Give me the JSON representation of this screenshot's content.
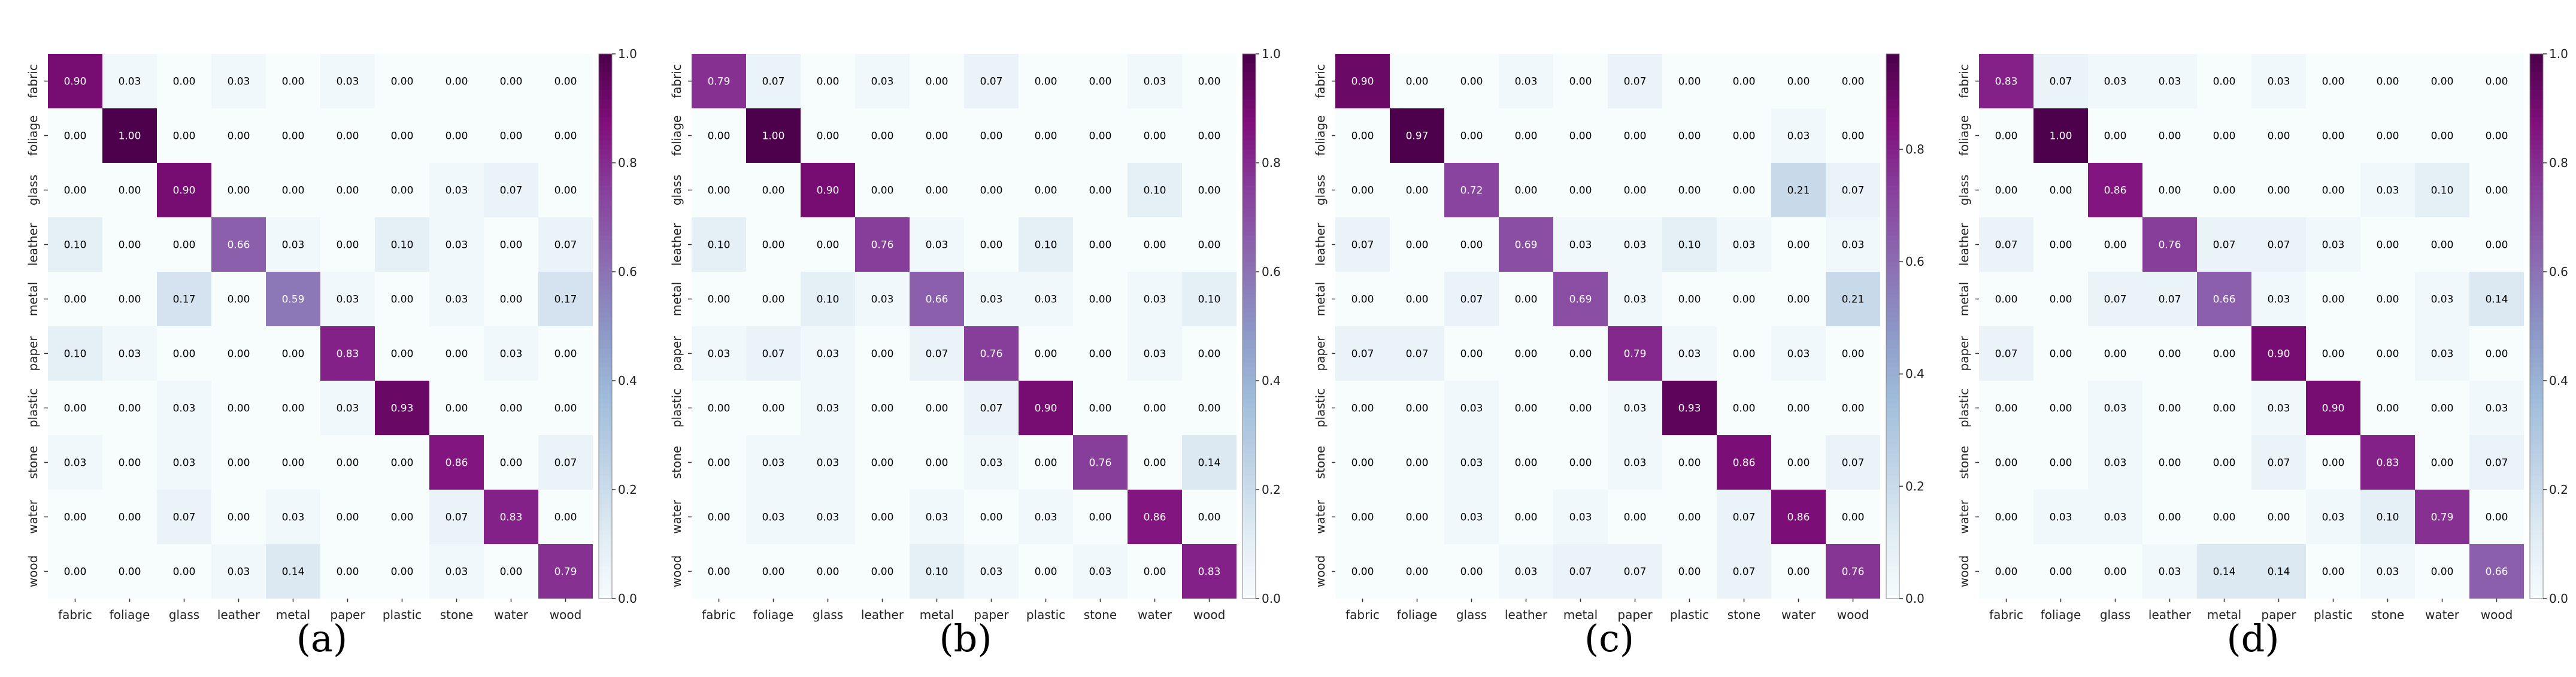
{
  "labels": [
    "fabric",
    "foliage",
    "glass",
    "leather",
    "metal",
    "paper",
    "plastic",
    "stone",
    "water",
    "wood"
  ],
  "colors": {
    "low": "#f7fcfd",
    "high": "#4d004b",
    "text_dark": "#000000",
    "text_light": "#ffffff"
  },
  "chart_data": [
    {
      "type": "heatmap",
      "caption": "(a)",
      "vmin": 0,
      "vmax": 1.0,
      "colorbar_ticks": [
        "0.0",
        "0.2",
        "0.4",
        "0.6",
        "0.8",
        "1.0"
      ],
      "colorbar_values": [
        0,
        0.2,
        0.4,
        0.6,
        0.8,
        1.0
      ],
      "x_categories": [
        "fabric",
        "foliage",
        "glass",
        "leather",
        "metal",
        "paper",
        "plastic",
        "stone",
        "water",
        "wood"
      ],
      "y_categories": [
        "fabric",
        "foliage",
        "glass",
        "leather",
        "metal",
        "paper",
        "plastic",
        "stone",
        "water",
        "wood"
      ],
      "matrix": [
        [
          0.9,
          0.03,
          0.0,
          0.03,
          0.0,
          0.03,
          0.0,
          0.0,
          0.0,
          0.0
        ],
        [
          0.0,
          1.0,
          0.0,
          0.0,
          0.0,
          0.0,
          0.0,
          0.0,
          0.0,
          0.0
        ],
        [
          0.0,
          0.0,
          0.9,
          0.0,
          0.0,
          0.0,
          0.0,
          0.03,
          0.07,
          0.0
        ],
        [
          0.1,
          0.0,
          0.0,
          0.66,
          0.03,
          0.0,
          0.1,
          0.03,
          0.0,
          0.07
        ],
        [
          0.0,
          0.0,
          0.17,
          0.0,
          0.59,
          0.03,
          0.0,
          0.03,
          0.0,
          0.17
        ],
        [
          0.1,
          0.03,
          0.0,
          0.0,
          0.0,
          0.83,
          0.0,
          0.0,
          0.03,
          0.0
        ],
        [
          0.0,
          0.0,
          0.03,
          0.0,
          0.0,
          0.03,
          0.93,
          0.0,
          0.0,
          0.0
        ],
        [
          0.03,
          0.0,
          0.03,
          0.0,
          0.0,
          0.0,
          0.0,
          0.86,
          0.0,
          0.07
        ],
        [
          0.0,
          0.0,
          0.07,
          0.0,
          0.03,
          0.0,
          0.0,
          0.07,
          0.83,
          0.0
        ],
        [
          0.0,
          0.0,
          0.0,
          0.03,
          0.14,
          0.0,
          0.0,
          0.03,
          0.0,
          0.79
        ]
      ]
    },
    {
      "type": "heatmap",
      "caption": "(b)",
      "vmin": 0,
      "vmax": 1.0,
      "colorbar_ticks": [
        "0.0",
        "0.2",
        "0.4",
        "0.6",
        "0.8",
        "1.0"
      ],
      "colorbar_values": [
        0,
        0.2,
        0.4,
        0.6,
        0.8,
        1.0
      ],
      "x_categories": [
        "fabric",
        "foliage",
        "glass",
        "leather",
        "metal",
        "paper",
        "plastic",
        "stone",
        "water",
        "wood"
      ],
      "y_categories": [
        "fabric",
        "foliage",
        "glass",
        "leather",
        "metal",
        "paper",
        "plastic",
        "stone",
        "water",
        "wood"
      ],
      "matrix": [
        [
          0.79,
          0.07,
          0.0,
          0.03,
          0.0,
          0.07,
          0.0,
          0.0,
          0.03,
          0.0
        ],
        [
          0.0,
          1.0,
          0.0,
          0.0,
          0.0,
          0.0,
          0.0,
          0.0,
          0.0,
          0.0
        ],
        [
          0.0,
          0.0,
          0.9,
          0.0,
          0.0,
          0.0,
          0.0,
          0.0,
          0.1,
          0.0
        ],
        [
          0.1,
          0.0,
          0.0,
          0.76,
          0.03,
          0.0,
          0.1,
          0.0,
          0.0,
          0.0
        ],
        [
          0.0,
          0.0,
          0.1,
          0.03,
          0.66,
          0.03,
          0.03,
          0.0,
          0.03,
          0.1
        ],
        [
          0.03,
          0.07,
          0.03,
          0.0,
          0.07,
          0.76,
          0.0,
          0.0,
          0.03,
          0.0
        ],
        [
          0.0,
          0.0,
          0.03,
          0.0,
          0.0,
          0.07,
          0.9,
          0.0,
          0.0,
          0.0
        ],
        [
          0.0,
          0.03,
          0.03,
          0.0,
          0.0,
          0.03,
          0.0,
          0.76,
          0.0,
          0.14
        ],
        [
          0.0,
          0.03,
          0.03,
          0.0,
          0.03,
          0.0,
          0.03,
          0.0,
          0.86,
          0.0
        ],
        [
          0.0,
          0.0,
          0.0,
          0.0,
          0.1,
          0.03,
          0.0,
          0.03,
          0.0,
          0.83
        ]
      ]
    },
    {
      "type": "heatmap",
      "caption": "(c)",
      "vmin": 0,
      "vmax": 0.97,
      "colorbar_ticks": [
        "0.0",
        "0.2",
        "0.4",
        "0.6",
        "0.8"
      ],
      "colorbar_values": [
        0,
        0.2,
        0.4,
        0.6,
        0.8
      ],
      "x_categories": [
        "fabric",
        "foliage",
        "glass",
        "leather",
        "metal",
        "paper",
        "plastic",
        "stone",
        "water",
        "wood"
      ],
      "y_categories": [
        "fabric",
        "foliage",
        "glass",
        "leather",
        "metal",
        "paper",
        "plastic",
        "stone",
        "water",
        "wood"
      ],
      "matrix": [
        [
          0.9,
          0.0,
          0.0,
          0.03,
          0.0,
          0.07,
          0.0,
          0.0,
          0.0,
          0.0
        ],
        [
          0.0,
          0.97,
          0.0,
          0.0,
          0.0,
          0.0,
          0.0,
          0.0,
          0.03,
          0.0
        ],
        [
          0.0,
          0.0,
          0.72,
          0.0,
          0.0,
          0.0,
          0.0,
          0.0,
          0.21,
          0.07
        ],
        [
          0.07,
          0.0,
          0.0,
          0.69,
          0.03,
          0.03,
          0.1,
          0.03,
          0.0,
          0.03
        ],
        [
          0.0,
          0.0,
          0.07,
          0.0,
          0.69,
          0.03,
          0.0,
          0.0,
          0.0,
          0.21
        ],
        [
          0.07,
          0.07,
          0.0,
          0.0,
          0.0,
          0.79,
          0.03,
          0.0,
          0.03,
          0.0
        ],
        [
          0.0,
          0.0,
          0.03,
          0.0,
          0.0,
          0.03,
          0.93,
          0.0,
          0.0,
          0.0
        ],
        [
          0.0,
          0.0,
          0.03,
          0.0,
          0.0,
          0.03,
          0.0,
          0.86,
          0.0,
          0.07
        ],
        [
          0.0,
          0.0,
          0.03,
          0.0,
          0.03,
          0.0,
          0.0,
          0.07,
          0.86,
          0.0
        ],
        [
          0.0,
          0.0,
          0.0,
          0.03,
          0.07,
          0.07,
          0.0,
          0.07,
          0.0,
          0.76
        ]
      ]
    },
    {
      "type": "heatmap",
      "caption": "(d)",
      "vmin": 0,
      "vmax": 1.0,
      "colorbar_ticks": [
        "0.0",
        "0.2",
        "0.4",
        "0.6",
        "0.8",
        "1.0"
      ],
      "colorbar_values": [
        0,
        0.2,
        0.4,
        0.6,
        0.8,
        1.0
      ],
      "x_categories": [
        "fabric",
        "foliage",
        "glass",
        "leather",
        "metal",
        "paper",
        "plastic",
        "stone",
        "water",
        "wood"
      ],
      "y_categories": [
        "fabric",
        "foliage",
        "glass",
        "leather",
        "metal",
        "paper",
        "plastic",
        "stone",
        "water",
        "wood"
      ],
      "matrix": [
        [
          0.83,
          0.07,
          0.03,
          0.03,
          0.0,
          0.03,
          0.0,
          0.0,
          0.0,
          0.0
        ],
        [
          0.0,
          1.0,
          0.0,
          0.0,
          0.0,
          0.0,
          0.0,
          0.0,
          0.0,
          0.0
        ],
        [
          0.0,
          0.0,
          0.86,
          0.0,
          0.0,
          0.0,
          0.0,
          0.03,
          0.1,
          0.0
        ],
        [
          0.07,
          0.0,
          0.0,
          0.76,
          0.07,
          0.07,
          0.03,
          0.0,
          0.0,
          0.0
        ],
        [
          0.0,
          0.0,
          0.07,
          0.07,
          0.66,
          0.03,
          0.0,
          0.0,
          0.03,
          0.14
        ],
        [
          0.07,
          0.0,
          0.0,
          0.0,
          0.0,
          0.9,
          0.0,
          0.0,
          0.03,
          0.0
        ],
        [
          0.0,
          0.0,
          0.03,
          0.0,
          0.0,
          0.03,
          0.9,
          0.0,
          0.0,
          0.03
        ],
        [
          0.0,
          0.0,
          0.03,
          0.0,
          0.0,
          0.07,
          0.0,
          0.83,
          0.0,
          0.07
        ],
        [
          0.0,
          0.03,
          0.03,
          0.0,
          0.0,
          0.0,
          0.03,
          0.1,
          0.79,
          0.0
        ],
        [
          0.0,
          0.0,
          0.0,
          0.03,
          0.14,
          0.14,
          0.0,
          0.03,
          0.0,
          0.66
        ]
      ]
    }
  ]
}
